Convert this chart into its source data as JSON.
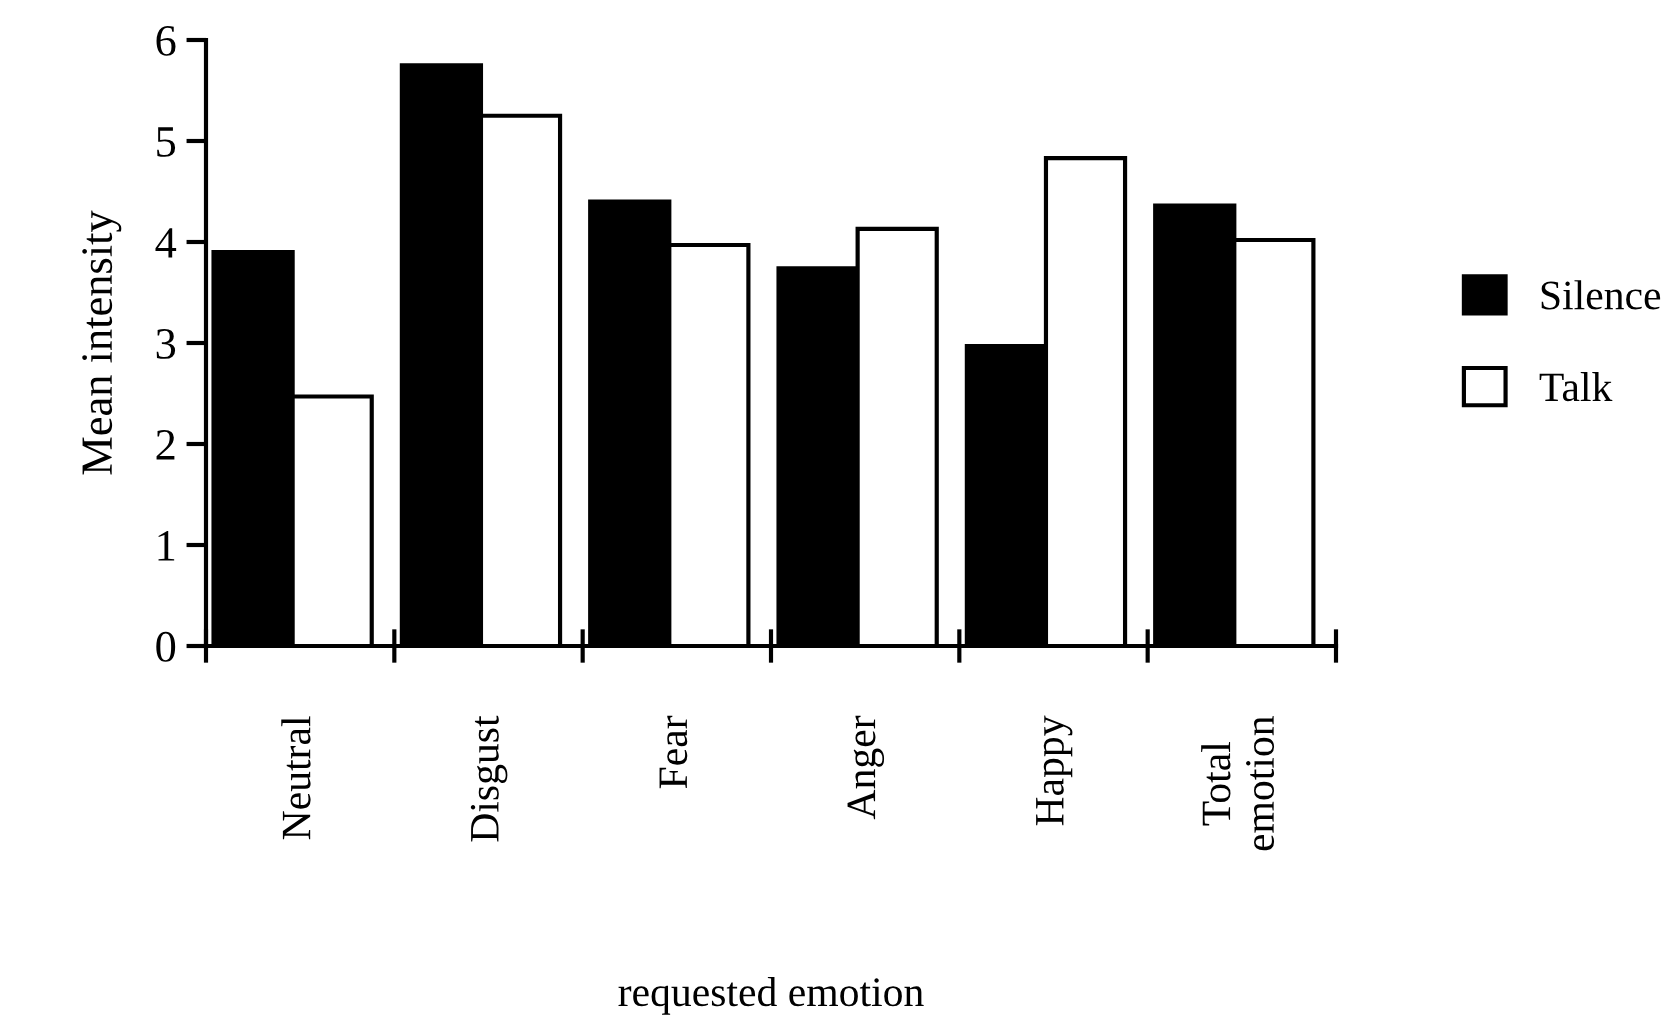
{
  "chart_data": {
    "type": "bar",
    "xlabel": "requested emotion",
    "ylabel": "Mean intensity",
    "categories": [
      "Neutral",
      "Disgust",
      "Fear",
      "Anger",
      "Happy",
      "Total\nemotion"
    ],
    "series": [
      {
        "name": "Silence",
        "color": "#000000",
        "values": [
          3.9,
          5.75,
          4.4,
          3.74,
          2.97,
          4.36
        ]
      },
      {
        "name": "Talk",
        "color": "#ffffff",
        "values": [
          2.47,
          5.25,
          3.97,
          4.13,
          4.83,
          4.02
        ]
      }
    ],
    "ylim": [
      0,
      6
    ],
    "yticks": [
      0,
      1,
      2,
      3,
      4,
      5,
      6
    ],
    "grid": false,
    "legend": "right"
  }
}
